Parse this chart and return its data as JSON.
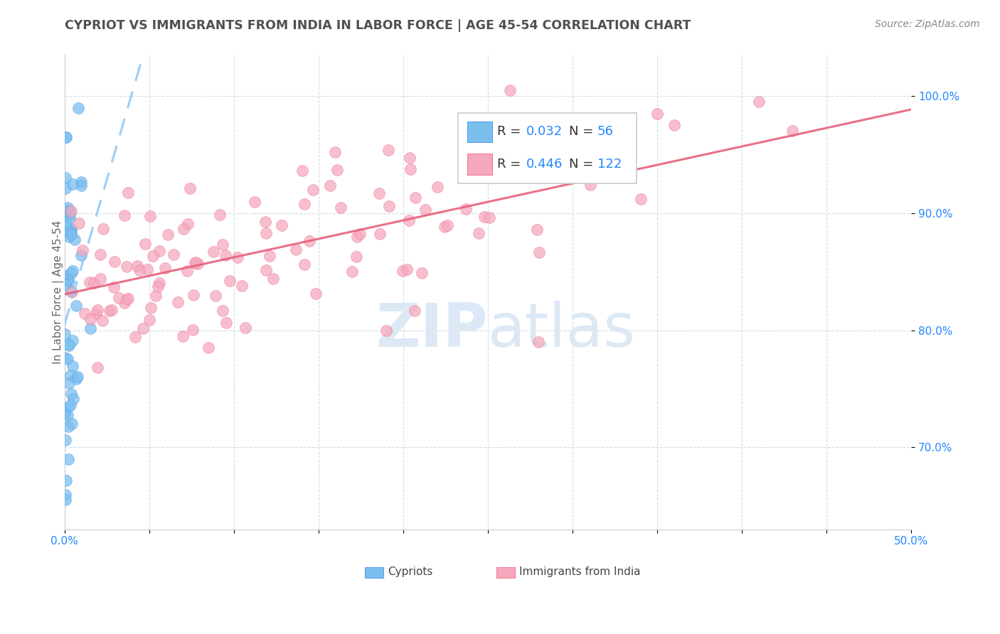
{
  "title": "CYPRIOT VS IMMIGRANTS FROM INDIA IN LABOR FORCE | AGE 45-54 CORRELATION CHART",
  "source": "Source: ZipAtlas.com",
  "ylabel": "In Labor Force | Age 45-54",
  "xlim": [
    0.0,
    0.5
  ],
  "ylim": [
    0.63,
    1.035
  ],
  "ytick_positions": [
    0.7,
    0.8,
    0.9,
    1.0
  ],
  "ytick_labels": [
    "70.0%",
    "80.0%",
    "90.0%",
    "100.0%"
  ],
  "legend_R1": "0.032",
  "legend_N1": "56",
  "legend_R2": "0.446",
  "legend_N2": "122",
  "cypriot_color": "#7bbfef",
  "india_color": "#f5a8be",
  "cypriot_edge": "#5a9fe8",
  "india_edge": "#f08098",
  "trend_blue_color": "#90c8f8",
  "trend_pink_color": "#e8607a",
  "watermark_zip": "ZIP",
  "watermark_atlas": "atlas",
  "watermark_color": "#dce8f5",
  "background": "#ffffff",
  "grid_color": "#d0dde8",
  "title_color": "#505050",
  "yaxis_label_color": "#2288ff",
  "xaxis_label_color": "#2288ff",
  "source_color": "#888888"
}
